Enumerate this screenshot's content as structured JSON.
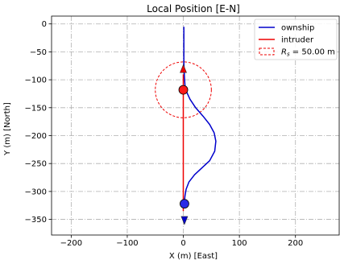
{
  "chart_data": {
    "type": "line",
    "title": "Local Position [E-N]",
    "xlabel": "X (m) [East]",
    "ylabel": "Y (m) [North]",
    "xlim": [
      -235,
      278
    ],
    "ylim": [
      -378,
      14
    ],
    "x_ticks": [
      -200,
      -100,
      0,
      100,
      200
    ],
    "y_ticks": [
      0,
      -50,
      -100,
      -150,
      -200,
      -250,
      -300,
      -350
    ],
    "grid": true,
    "grid_style": "dashdot",
    "legend_position": "upper-right",
    "series": [
      {
        "name": "ownship",
        "color": "#0000cc",
        "points": [
          [
            1,
            -5
          ],
          [
            1,
            -40
          ],
          [
            1,
            -70
          ],
          [
            2,
            -95
          ],
          [
            3,
            -110
          ],
          [
            6,
            -122
          ],
          [
            12,
            -135
          ],
          [
            22,
            -150
          ],
          [
            35,
            -165
          ],
          [
            47,
            -180
          ],
          [
            55,
            -195
          ],
          [
            58,
            -210
          ],
          [
            56,
            -228
          ],
          [
            47,
            -245
          ],
          [
            33,
            -258
          ],
          [
            20,
            -270
          ],
          [
            10,
            -283
          ],
          [
            5,
            -296
          ],
          [
            3,
            -308
          ],
          [
            2,
            -318
          ],
          [
            2,
            -322
          ]
        ],
        "marker": {
          "x": 2,
          "y": -322,
          "color": "#2a2ae6"
        },
        "arrow": {
          "x": 2,
          "y": -352,
          "direction": "down"
        }
      },
      {
        "name": "intruder",
        "color": "#ee0000",
        "points": [
          [
            0,
            -335
          ],
          [
            0,
            -90
          ]
        ],
        "marker": {
          "x": 0,
          "y": -118,
          "color": "#ff1a1a"
        },
        "arrow": {
          "x": 0,
          "y": -80,
          "direction": "up"
        }
      }
    ],
    "circle": {
      "name": "R_s = 50.00 m",
      "label_math": "R",
      "label_sub": "s",
      "label_rest": " = 50.00 m",
      "center": [
        0,
        -118
      ],
      "radius": 50,
      "color": "#ee0000",
      "style": "dashed"
    }
  }
}
